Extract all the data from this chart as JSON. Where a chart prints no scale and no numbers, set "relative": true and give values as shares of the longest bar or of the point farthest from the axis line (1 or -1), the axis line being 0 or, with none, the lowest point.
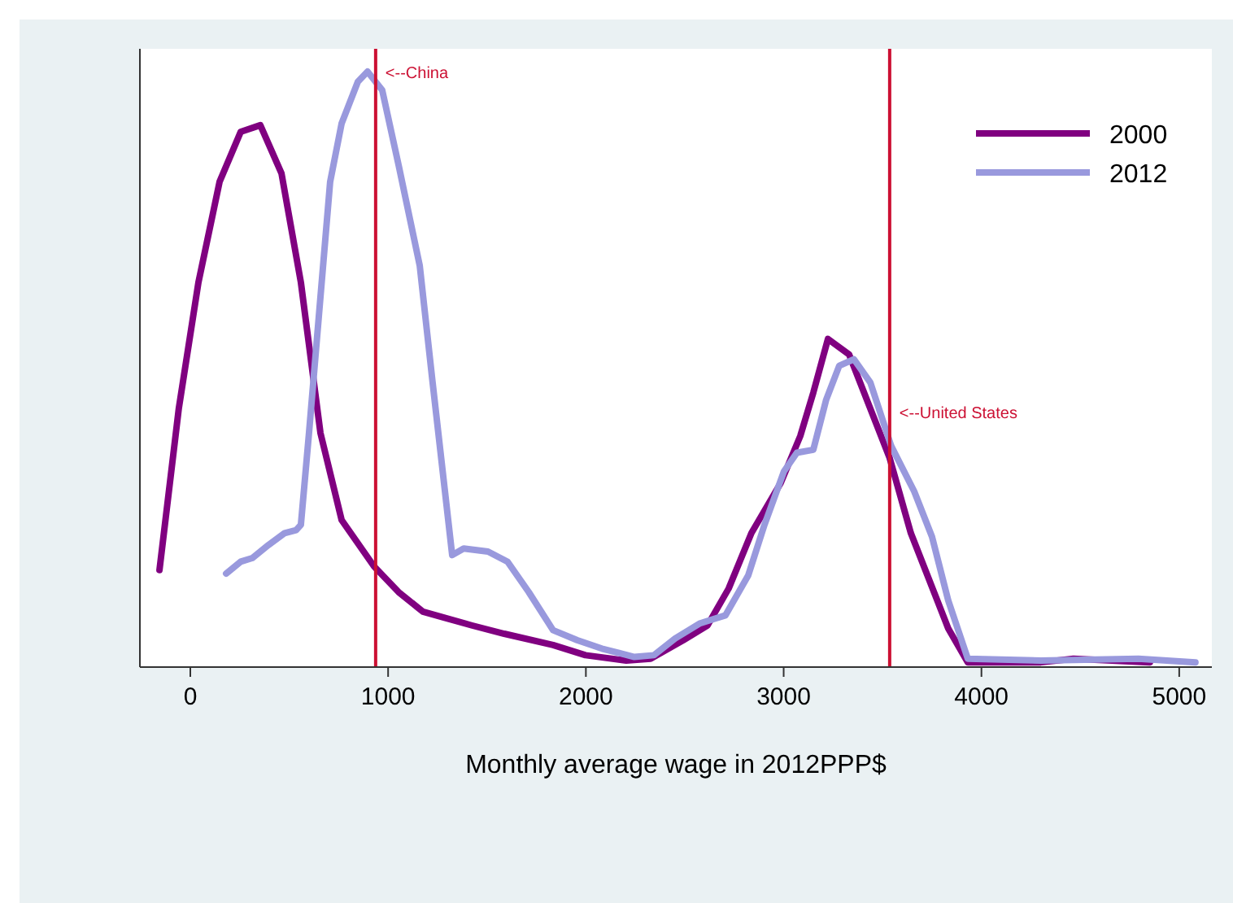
{
  "chart_data": {
    "type": "line",
    "relative": true,
    "xlabel": "Monthly average wage in 2012PPP$",
    "xlim": [
      -255,
      5165
    ],
    "xticks": [
      0,
      1000,
      2000,
      3000,
      4000,
      5000
    ],
    "legend": "top right",
    "line_style": "solid",
    "marker": "none",
    "ref_lines": [
      {
        "axis": "x",
        "value": 937,
        "label": "<--China",
        "color": "#cc1033"
      },
      {
        "axis": "x",
        "value": 3536,
        "label": "<--United States",
        "color": "#cc1033"
      }
    ],
    "series": [
      {
        "name": "2000",
        "color": "#800080",
        "x": [
          -156,
          -58,
          41,
          148,
          255,
          354,
          461,
          559,
          658,
          765,
          929,
          1053,
          1176,
          1423,
          1587,
          1834,
          1998,
          2204,
          2327,
          2492,
          2615,
          2722,
          2837,
          2985,
          3084,
          3150,
          3224,
          3331,
          3536,
          3643,
          3832,
          3931,
          4301,
          4465,
          4852
        ],
        "values": [
          0.163,
          0.435,
          0.646,
          0.815,
          0.899,
          0.91,
          0.829,
          0.646,
          0.393,
          0.247,
          0.169,
          0.126,
          0.093,
          0.07,
          0.056,
          0.037,
          0.02,
          0.011,
          0.014,
          0.045,
          0.07,
          0.132,
          0.225,
          0.309,
          0.388,
          0.461,
          0.551,
          0.525,
          0.351,
          0.225,
          0.065,
          0.008,
          0.008,
          0.014,
          0.008
        ]
      },
      {
        "name": "2012",
        "color": "#9999dd",
        "x": [
          181,
          255,
          313,
          395,
          477,
          535,
          559,
          600,
          650,
          707,
          765,
          847,
          896,
          970,
          1053,
          1160,
          1225,
          1324,
          1382,
          1505,
          1604,
          1711,
          1834,
          1957,
          2081,
          2245,
          2344,
          2451,
          2574,
          2706,
          2821,
          2903,
          3002,
          3067,
          3150,
          3215,
          3281,
          3355,
          3438,
          3544,
          3660,
          3750,
          3832,
          3931,
          4301,
          4794,
          5082
        ],
        "values": [
          0.157,
          0.177,
          0.183,
          0.205,
          0.225,
          0.23,
          0.239,
          0.393,
          0.59,
          0.815,
          0.913,
          0.983,
          1,
          0.969,
          0.843,
          0.674,
          0.478,
          0.188,
          0.199,
          0.194,
          0.177,
          0.126,
          0.062,
          0.045,
          0.031,
          0.017,
          0.02,
          0.048,
          0.073,
          0.087,
          0.154,
          0.239,
          0.329,
          0.36,
          0.365,
          0.449,
          0.506,
          0.517,
          0.478,
          0.371,
          0.295,
          0.219,
          0.112,
          0.014,
          0.011,
          0.014,
          0.008
        ]
      }
    ]
  }
}
